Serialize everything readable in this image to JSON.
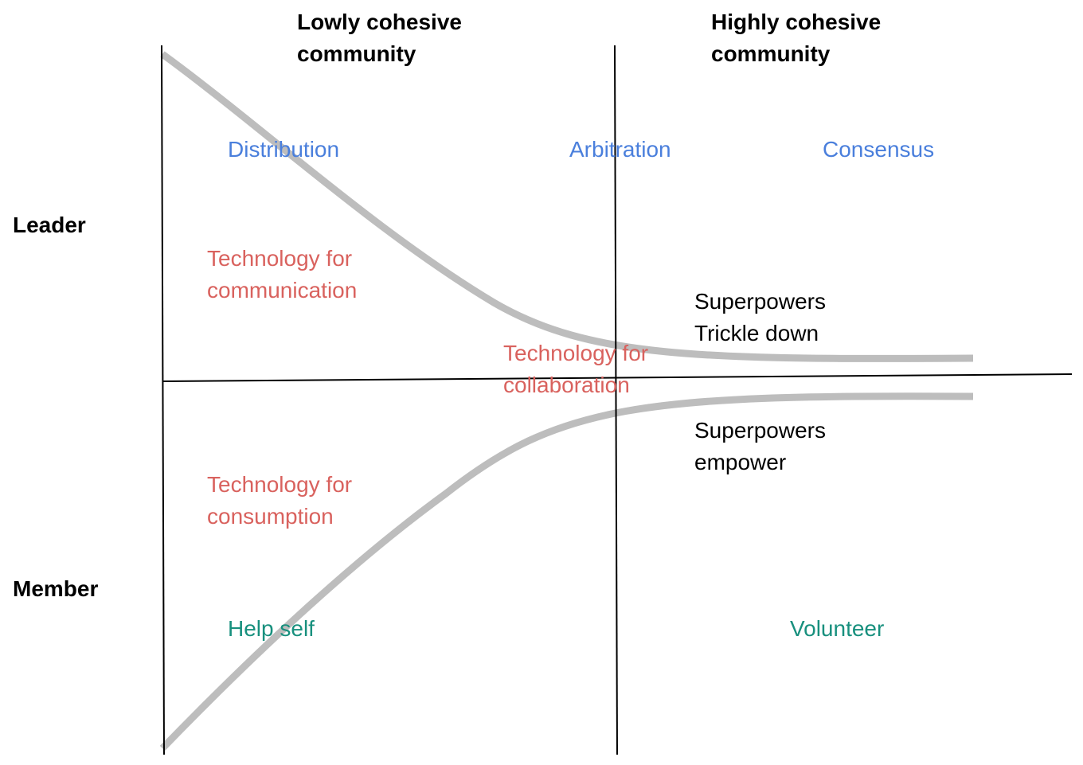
{
  "headers": {
    "low": "Lowly cohesive\ncommunity",
    "high": "Highly cohesive\ncommunity"
  },
  "axis": {
    "leader": "Leader",
    "member": "Member"
  },
  "top_row": {
    "distribution": "Distribution",
    "arbitration": "Arbitration",
    "consensus": "Consensus"
  },
  "technology": {
    "communication": "Technology for\ncommunication",
    "collaboration": "Technology for\ncollaboration",
    "consumption": "Technology for\nconsumption"
  },
  "superpowers": {
    "trickle": "Superpowers\nTrickle down",
    "empower": "Superpowers\nempower"
  },
  "bottom_row": {
    "help_self": "Help self",
    "volunteer": "Volunteer"
  },
  "colors": {
    "blue": "#4a7fdc",
    "red": "#d9625e",
    "teal": "#18907e",
    "curve": "#bdbdbd",
    "axis": "#000000"
  }
}
